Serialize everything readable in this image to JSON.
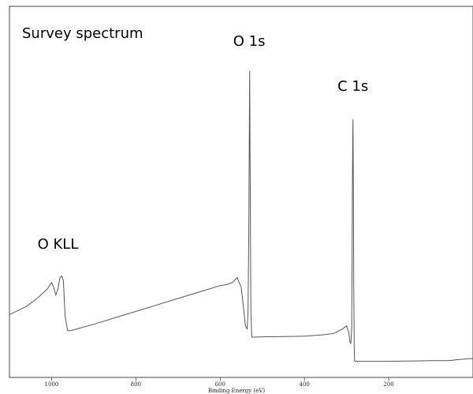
{
  "chart_data": {
    "type": "line",
    "title": "Survey spectrum",
    "xlabel": "Binding Energy (eV)",
    "ylabel": "",
    "x_reversed": true,
    "xlim": [
      1100,
      0
    ],
    "ylim": [
      0,
      100
    ],
    "x_ticks": [
      1000,
      800,
      600,
      400,
      200
    ],
    "grid": false,
    "series": [
      {
        "color": "#555555",
        "x": [
          1100,
          1060,
          1030,
          1010,
          1000,
          995,
          990,
          985,
          980,
          976,
          972,
          968,
          962,
          955,
          950,
          900,
          850,
          800,
          750,
          700,
          650,
          600,
          585,
          570,
          560,
          550,
          545,
          540,
          536,
          534,
          532,
          531,
          530,
          529,
          528,
          527,
          525,
          520,
          500,
          450,
          400,
          350,
          330,
          310,
          300,
          295,
          292,
          290,
          288,
          287,
          286,
          285,
          284,
          283,
          282,
          281,
          280,
          275,
          270,
          250,
          200,
          150,
          100,
          60,
          50,
          40,
          30,
          20,
          10,
          0
        ],
        "y": [
          19.5,
          22,
          25,
          27.5,
          29.5,
          28,
          25.5,
          27.5,
          31,
          31.5,
          30,
          19,
          14.5,
          14.5,
          14.7,
          16.5,
          18.5,
          20.5,
          22.5,
          24.5,
          26.5,
          28.5,
          28.8,
          29.5,
          31,
          28,
          22,
          16,
          15,
          20,
          45,
          72,
          95,
          70,
          40,
          20,
          12.5,
          12.5,
          12.6,
          12.7,
          12.8,
          13.3,
          13.7,
          15,
          16,
          14,
          11,
          10.5,
          15,
          35,
          62,
          80,
          62,
          30,
          10,
          5.2,
          5.0,
          5.0,
          5.0,
          5.0,
          5.0,
          5.1,
          5.2,
          5.2,
          5.3,
          5.5,
          5.6,
          5.7,
          5.8,
          5.8
        ]
      }
    ],
    "annotations": [
      {
        "text": "O 1s",
        "x": 531,
        "y": 100
      },
      {
        "text": "C 1s",
        "x": 285,
        "y": 86
      },
      {
        "text": "O KLL",
        "x": 985,
        "y": 37
      }
    ]
  }
}
